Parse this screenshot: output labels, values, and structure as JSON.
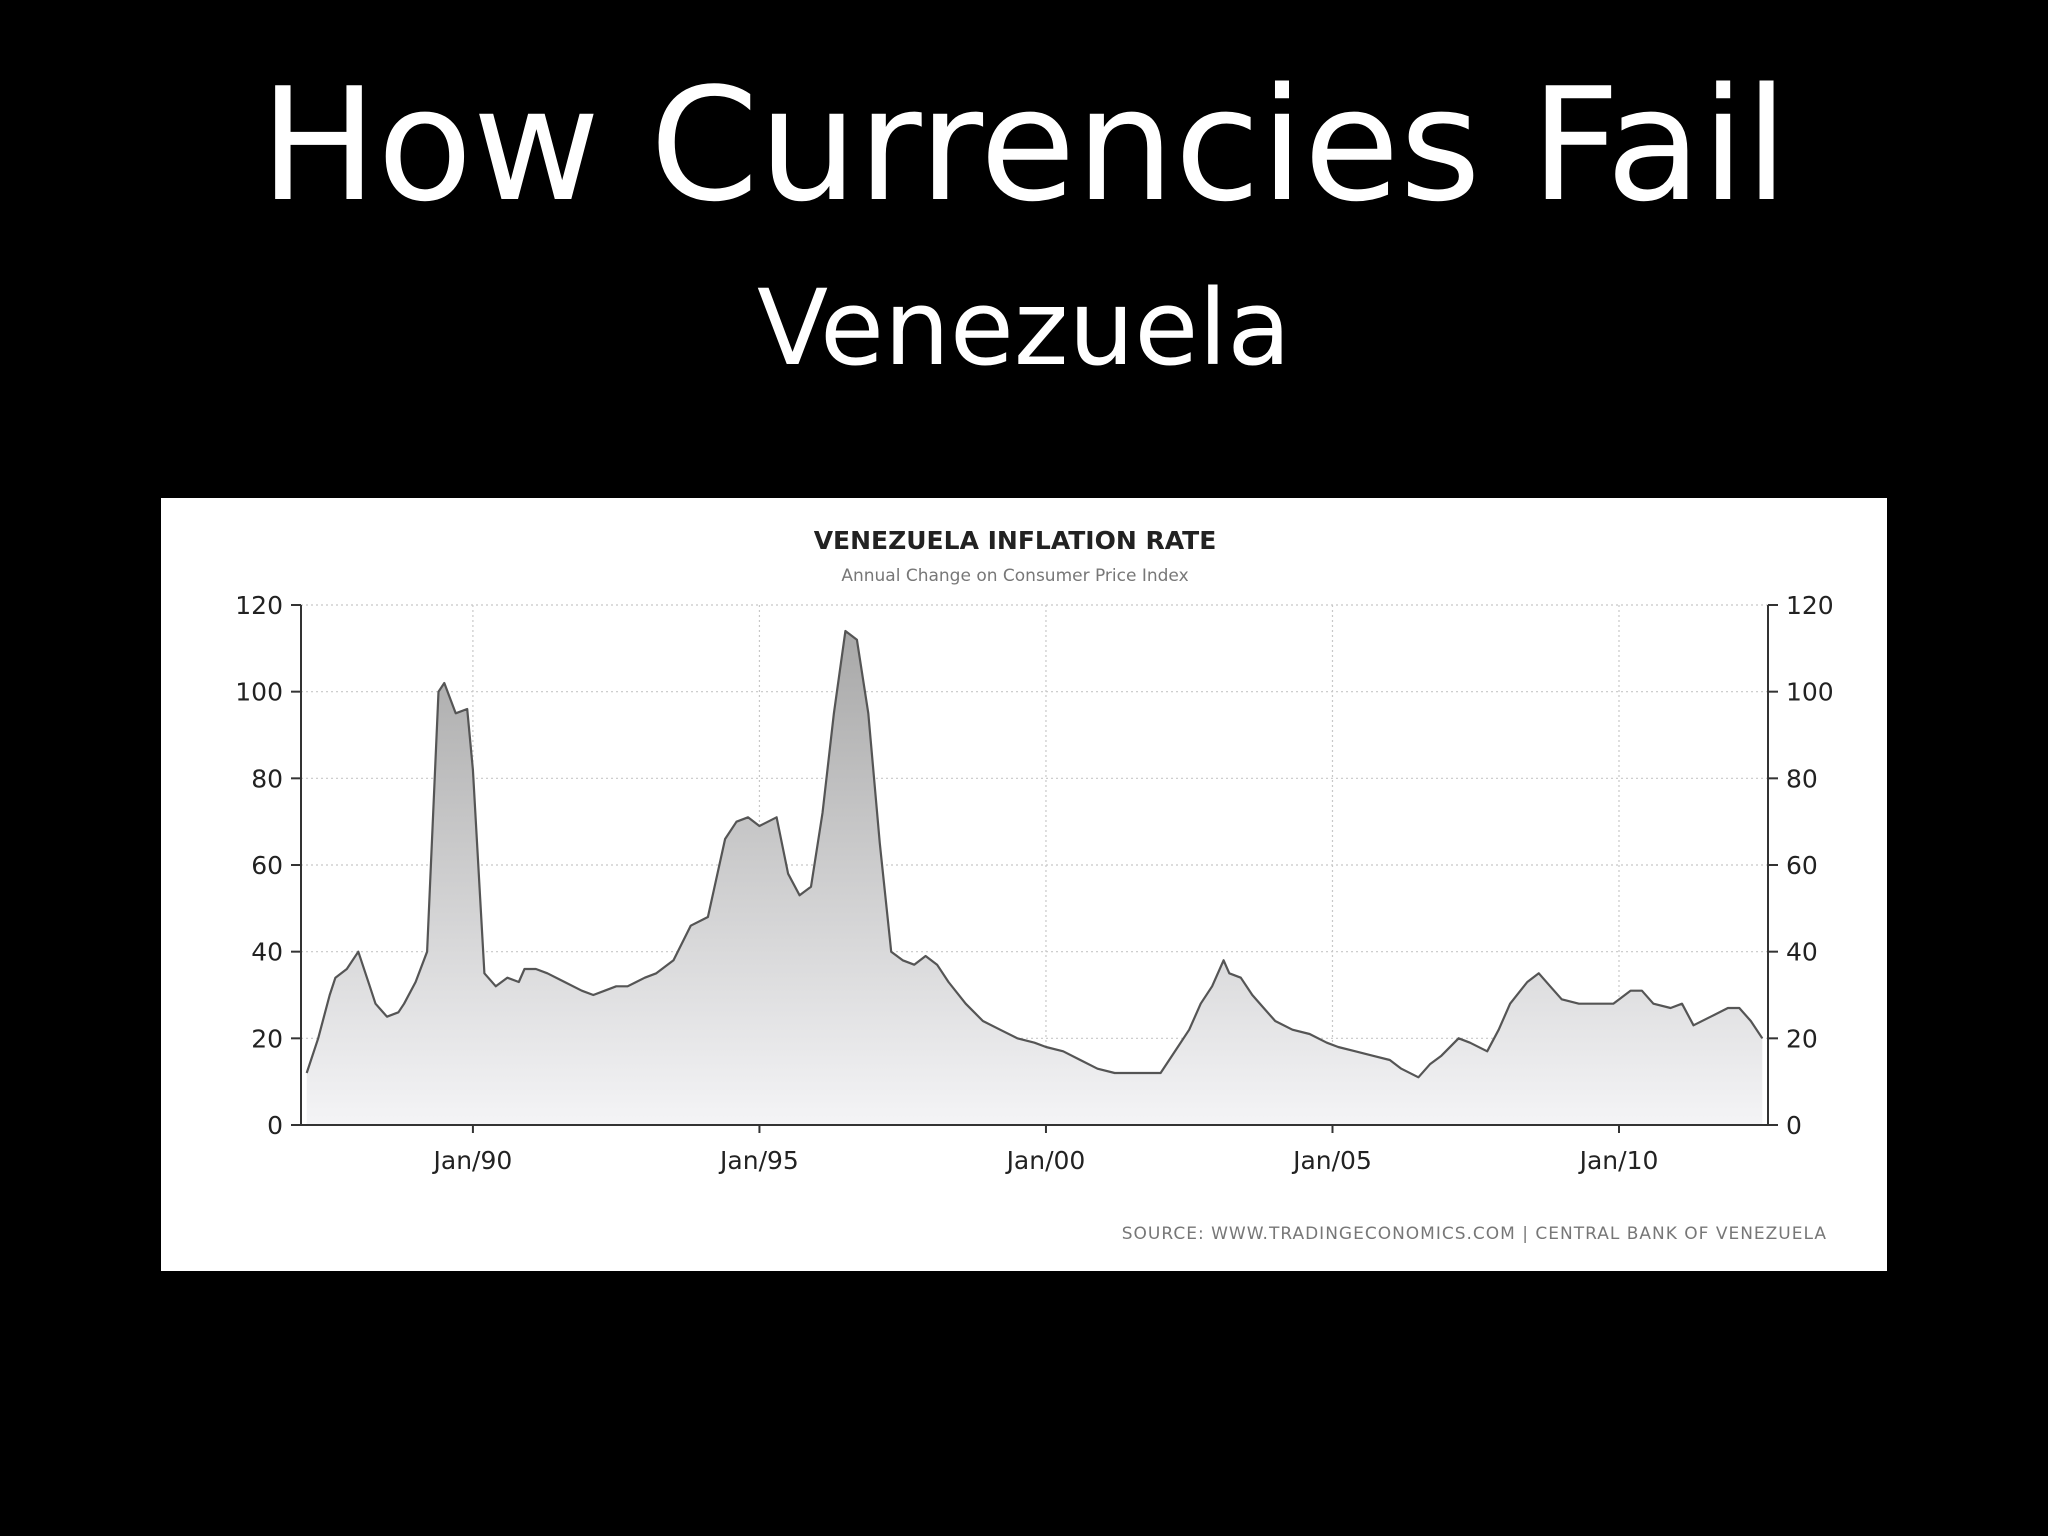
{
  "slide": {
    "title": "How Currencies Fail",
    "subtitle": "Venezuela"
  },
  "chart_data": {
    "type": "area",
    "title": "VENEZUELA INFLATION RATE",
    "subtitle": "Annual Change on Consumer Price Index",
    "source": "SOURCE:  WWW.TRADINGECONOMICS.COM  |  CENTRAL  BANK  OF  VENEZUELA",
    "xlabel": "",
    "ylabel": "",
    "ylim": [
      0,
      120
    ],
    "xlim": [
      1987.0,
      2012.6
    ],
    "y_ticks": [
      0,
      20,
      40,
      60,
      80,
      100,
      120
    ],
    "x_ticks": [
      {
        "value": 1990,
        "label": "Jan/90"
      },
      {
        "value": 1995,
        "label": "Jan/95"
      },
      {
        "value": 2000,
        "label": "Jan/00"
      },
      {
        "value": 2005,
        "label": "Jan/05"
      },
      {
        "value": 2010,
        "label": "Jan/10"
      }
    ],
    "grid": true,
    "legend": "none",
    "colors": {
      "line": "#555555",
      "fill_top": "#a8a8a8",
      "fill_bottom": "#f4f4f6",
      "grid": "#c8c8c8"
    },
    "series": [
      {
        "x": [
          1987.1,
          1987.3,
          1987.5,
          1987.6,
          1987.8,
          1988.0,
          1988.2,
          1988.3,
          1988.5,
          1988.7,
          1988.8,
          1989.0,
          1989.2,
          1989.4,
          1989.5,
          1989.7,
          1989.9,
          1990.0,
          1990.2,
          1990.4,
          1990.6,
          1990.8,
          1990.9,
          1991.1,
          1991.3,
          1991.6,
          1991.9,
          1992.1,
          1992.3,
          1992.5,
          1992.7,
          1993.0,
          1993.2,
          1993.5,
          1993.8,
          1994.1,
          1994.4,
          1994.6,
          1994.8,
          1995.0,
          1995.3,
          1995.5,
          1995.7,
          1995.9,
          1996.1,
          1996.3,
          1996.5,
          1996.7,
          1996.9,
          1997.1,
          1997.3,
          1997.5,
          1997.7,
          1997.9,
          1998.1,
          1998.3,
          1998.6,
          1998.9,
          1999.2,
          1999.5,
          1999.8,
          2000.0,
          2000.3,
          2000.6,
          2000.9,
          2001.2,
          2001.5,
          2001.8,
          2002.0,
          2002.3,
          2002.5,
          2002.7,
          2002.9,
          2003.1,
          2003.2,
          2003.4,
          2003.6,
          2003.8,
          2004.0,
          2004.3,
          2004.6,
          2004.9,
          2005.1,
          2005.4,
          2005.7,
          2006.0,
          2006.2,
          2006.5,
          2006.7,
          2006.9,
          2007.2,
          2007.4,
          2007.7,
          2007.9,
          2008.1,
          2008.4,
          2008.6,
          2008.8,
          2009.0,
          2009.3,
          2009.6,
          2009.9,
          2010.2,
          2010.4,
          2010.6,
          2010.9,
          2011.1,
          2011.3,
          2011.6,
          2011.9,
          2012.1,
          2012.3,
          2012.5
        ],
        "values": [
          12,
          20,
          30,
          34,
          36,
          40,
          32,
          28,
          25,
          26,
          28,
          33,
          40,
          100,
          102,
          95,
          96,
          82,
          35,
          32,
          34,
          33,
          36,
          36,
          35,
          33,
          31,
          30,
          31,
          32,
          32,
          34,
          35,
          38,
          46,
          48,
          66,
          70,
          71,
          69,
          71,
          58,
          53,
          55,
          72,
          95,
          114,
          112,
          95,
          65,
          40,
          38,
          37,
          39,
          37,
          33,
          28,
          24,
          22,
          20,
          19,
          18,
          17,
          15,
          13,
          12,
          12,
          12,
          12,
          18,
          22,
          28,
          32,
          38,
          35,
          34,
          30,
          27,
          24,
          22,
          21,
          19,
          18,
          17,
          16,
          15,
          13,
          11,
          14,
          16,
          20,
          19,
          17,
          22,
          28,
          33,
          35,
          32,
          29,
          28,
          28,
          28,
          31,
          31,
          28,
          27,
          28,
          23,
          25,
          27,
          27,
          24,
          20
        ]
      }
    ]
  }
}
